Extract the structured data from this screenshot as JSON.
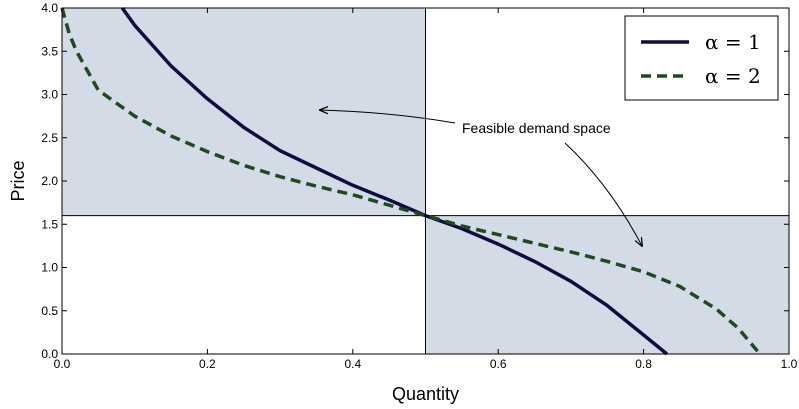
{
  "chart_data": {
    "type": "line",
    "xlabel": "Quantity",
    "ylabel": "Price",
    "xlim": [
      0.0,
      1.0
    ],
    "ylim": [
      0.0,
      4.0
    ],
    "xticks": [
      "0.0",
      "0.2",
      "0.4",
      "0.6",
      "0.8",
      "1.0"
    ],
    "yticks": [
      "0.0",
      "0.5",
      "1.0",
      "1.5",
      "2.0",
      "2.5",
      "3.0",
      "3.5",
      "4.0"
    ],
    "grid": false,
    "legend_position": "top-right",
    "reference_point": {
      "x": 0.5,
      "y": 1.6
    },
    "shaded_regions": [
      {
        "x": [
          0.0,
          0.5
        ],
        "y": [
          1.6,
          4.0
        ]
      },
      {
        "x": [
          0.5,
          1.0
        ],
        "y": [
          0.0,
          1.6
        ]
      }
    ],
    "annotation": "Feasible demand space",
    "series": [
      {
        "name": "α = 1",
        "style": "solid",
        "color": "#0d0d3f",
        "points": [
          [
            0.083,
            4.0
          ],
          [
            0.1,
            3.8
          ],
          [
            0.15,
            3.33
          ],
          [
            0.2,
            2.95
          ],
          [
            0.25,
            2.62
          ],
          [
            0.3,
            2.35
          ],
          [
            0.35,
            2.15
          ],
          [
            0.4,
            1.95
          ],
          [
            0.45,
            1.78
          ],
          [
            0.5,
            1.6
          ],
          [
            0.55,
            1.45
          ],
          [
            0.6,
            1.27
          ],
          [
            0.65,
            1.07
          ],
          [
            0.7,
            0.84
          ],
          [
            0.75,
            0.56
          ],
          [
            0.8,
            0.22
          ],
          [
            0.832,
            0.0
          ]
        ]
      },
      {
        "name": "α = 2",
        "style": "dashed",
        "color": "#1f4a20",
        "points": [
          [
            0.0,
            4.0
          ],
          [
            0.01,
            3.7
          ],
          [
            0.02,
            3.5
          ],
          [
            0.05,
            3.05
          ],
          [
            0.1,
            2.75
          ],
          [
            0.15,
            2.52
          ],
          [
            0.2,
            2.34
          ],
          [
            0.25,
            2.18
          ],
          [
            0.3,
            2.05
          ],
          [
            0.35,
            1.94
          ],
          [
            0.4,
            1.84
          ],
          [
            0.45,
            1.72
          ],
          [
            0.5,
            1.6
          ],
          [
            0.55,
            1.48
          ],
          [
            0.6,
            1.38
          ],
          [
            0.65,
            1.28
          ],
          [
            0.7,
            1.18
          ],
          [
            0.75,
            1.07
          ],
          [
            0.8,
            0.95
          ],
          [
            0.85,
            0.78
          ],
          [
            0.9,
            0.52
          ],
          [
            0.93,
            0.3
          ],
          [
            0.96,
            0.0
          ]
        ]
      }
    ]
  }
}
